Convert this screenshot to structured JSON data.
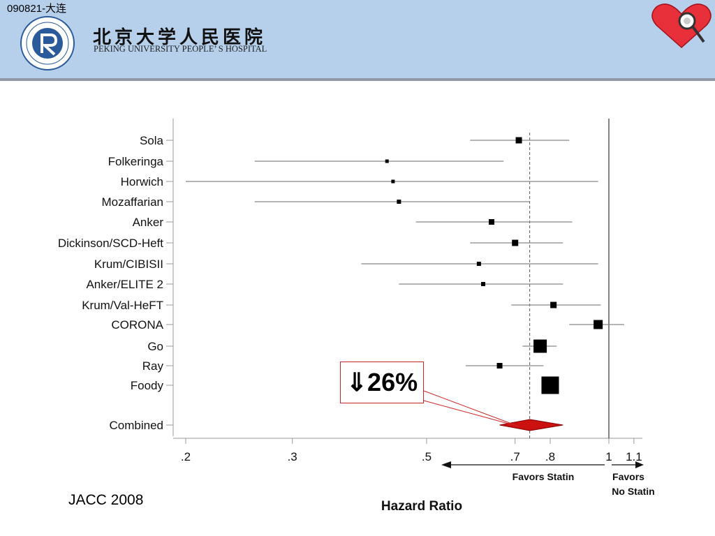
{
  "slide": {
    "tag": "090821-大连",
    "hospital_cn": "北京大学人民医院",
    "hospital_en": "PEKING UNIVERSITY PEOPLE’ S HOSPITAL",
    "source": "JACC  2008",
    "callout": "⇓26%",
    "colors": {
      "header": "#b6d0ec",
      "diamond": "#cc1111",
      "callout_border": "#cc2222"
    }
  },
  "chart_data": {
    "type": "forest",
    "xlabel": "Hazard Ratio",
    "scale": "log",
    "xlim": [
      0.19,
      1.15
    ],
    "x_ticks": [
      {
        "value": 0.2,
        "label": ".2"
      },
      {
        "value": 0.3,
        "label": ".3"
      },
      {
        "value": 0.5,
        "label": ".5"
      },
      {
        "value": 0.7,
        "label": ".7"
      },
      {
        "value": 0.8,
        "label": ".8"
      },
      {
        "value": 1.0,
        "label": "1"
      },
      {
        "value": 1.1,
        "label": "1.1"
      }
    ],
    "reference_line": 1.0,
    "pooled_line": 0.74,
    "left_arrow_label": "Favors Statin",
    "right_arrow_label": "Favors No Statin",
    "studies": [
      {
        "name": "Sola",
        "hr": 0.71,
        "lo": 0.59,
        "hi": 0.86,
        "weight": 3
      },
      {
        "name": "Folkeringa",
        "hr": 0.43,
        "lo": 0.26,
        "hi": 0.67,
        "weight": 1
      },
      {
        "name": "Horwich",
        "hr": 0.44,
        "lo": 0.2,
        "hi": 0.96,
        "weight": 1
      },
      {
        "name": "Mozaffarian",
        "hr": 0.45,
        "lo": 0.26,
        "hi": 0.74,
        "weight": 1.5
      },
      {
        "name": "Anker",
        "hr": 0.64,
        "lo": 0.48,
        "hi": 0.87,
        "weight": 2.5
      },
      {
        "name": "Dickinson/SCD-Heft",
        "hr": 0.7,
        "lo": 0.59,
        "hi": 0.84,
        "weight": 3
      },
      {
        "name": "Krum/CIBISII",
        "hr": 0.61,
        "lo": 0.39,
        "hi": 0.96,
        "weight": 1.5
      },
      {
        "name": "Anker/ELITE 2",
        "hr": 0.62,
        "lo": 0.45,
        "hi": 0.84,
        "weight": 1.5
      },
      {
        "name": "Krum/Val-HeFT",
        "hr": 0.81,
        "lo": 0.69,
        "hi": 0.97,
        "weight": 3
      },
      {
        "name": "CORONA",
        "hr": 0.96,
        "lo": 0.86,
        "hi": 1.06,
        "weight": 5
      },
      {
        "name": "Go",
        "hr": 0.77,
        "lo": 0.72,
        "hi": 0.82,
        "weight": 8
      },
      {
        "name": "Ray",
        "hr": 0.66,
        "lo": 0.58,
        "hi": 0.78,
        "weight": 2.5
      },
      {
        "name": "Foody",
        "hr": 0.8,
        "lo": 0.8,
        "hi": 0.8,
        "weight": 11
      }
    ],
    "combined": {
      "name": "Combined",
      "hr": 0.74,
      "lo": 0.7,
      "hi": 0.79
    }
  }
}
